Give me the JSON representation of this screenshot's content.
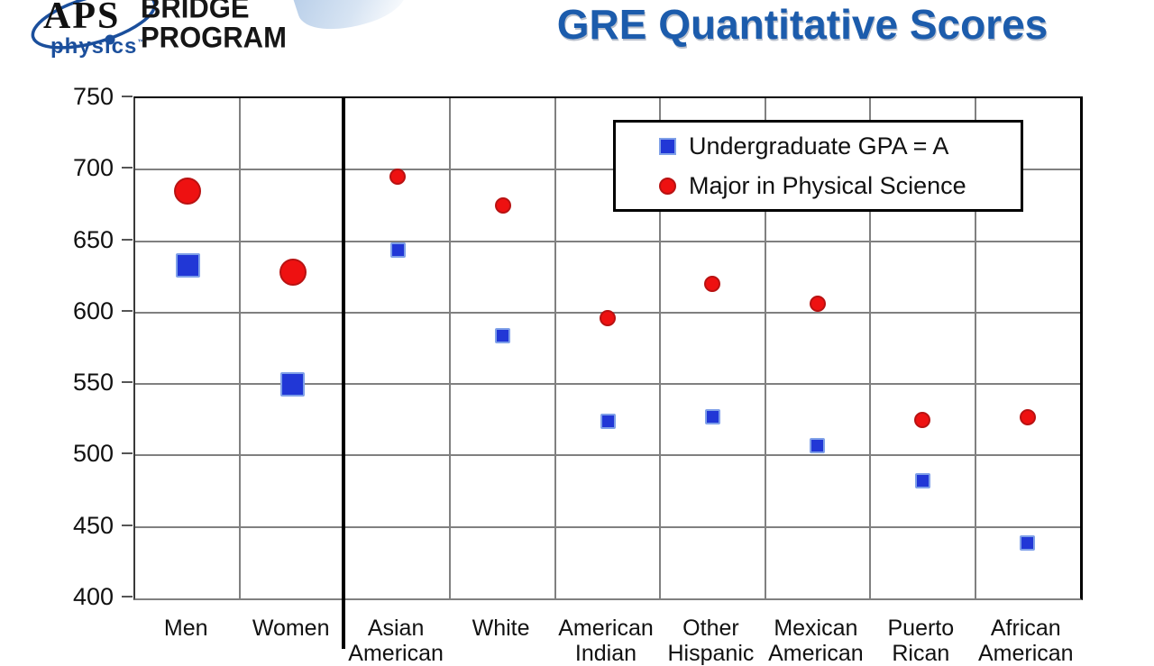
{
  "header": {
    "logo": {
      "aps": "APS",
      "physics": "physics",
      "trademark": "™",
      "bridge_line1": "BRIDGE",
      "bridge_line2": "PROGRAM",
      "accent_color": "#1b4f9c"
    },
    "title": "GRE Quantitative Scores",
    "title_color": "#1c5cac"
  },
  "chart_data": {
    "type": "scatter",
    "title": "GRE Quantitative Scores",
    "ylim": [
      400,
      750
    ],
    "yticks": [
      750,
      700,
      650,
      600,
      550,
      500,
      450,
      400
    ],
    "grid": true,
    "legend_position": "top-right",
    "divider_after_category": "Women",
    "categories": [
      {
        "label": "Men",
        "sublabel": ""
      },
      {
        "label": "Women",
        "sublabel": ""
      },
      {
        "label": "Asian",
        "sublabel": "American"
      },
      {
        "label": "White",
        "sublabel": ""
      },
      {
        "label": "American",
        "sublabel": "Indian"
      },
      {
        "label": "Other",
        "sublabel": "Hispanic"
      },
      {
        "label": "Mexican",
        "sublabel": "American"
      },
      {
        "label": "Puerto",
        "sublabel": "Rican"
      },
      {
        "label": "African",
        "sublabel": "American"
      }
    ],
    "series": [
      {
        "name": "Undergraduate GPA = A",
        "marker": "square",
        "fill": "#2137d6",
        "stroke": "#7fa0e8",
        "values": [
          633,
          550,
          644,
          584,
          524,
          527,
          507,
          482,
          439
        ]
      },
      {
        "name": "Major in Physical Science",
        "marker": "circle",
        "fill": "#ee1111",
        "stroke": "#b81212",
        "values": [
          685,
          628,
          695,
          675,
          596,
          620,
          606,
          525,
          527
        ]
      }
    ],
    "gridline_color": "#808080",
    "axis_color": "#000000"
  }
}
